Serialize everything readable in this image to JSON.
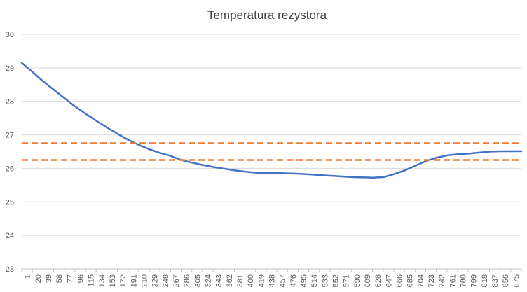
{
  "chart_data": {
    "type": "line",
    "title": "Temperatura rezystora",
    "xlabel": "",
    "ylabel": "",
    "ylim": [
      23,
      30
    ],
    "y_ticks": [
      "23",
      "24",
      "25",
      "26",
      "27",
      "28",
      "29",
      "30"
    ],
    "x_tick_labels": [
      "1",
      "20",
      "39",
      "58",
      "77",
      "96",
      "115",
      "134",
      "153",
      "172",
      "191",
      "210",
      "229",
      "248",
      "267",
      "286",
      "305",
      "324",
      "343",
      "362",
      "381",
      "400",
      "419",
      "438",
      "457",
      "476",
      "495",
      "514",
      "533",
      "552",
      "571",
      "590",
      "609",
      "628",
      "647",
      "666",
      "685",
      "704",
      "723",
      "742",
      "761",
      "780",
      "799",
      "818",
      "837",
      "856",
      "875"
    ],
    "x_range": [
      1,
      893
    ],
    "grid": "horizontal",
    "legend": "none",
    "series": [
      {
        "kind": "line",
        "color": "#4472C4",
        "x": [
          1,
          20,
          39,
          58,
          77,
          96,
          115,
          134,
          153,
          172,
          191,
          210,
          229,
          248,
          267,
          286,
          305,
          324,
          343,
          362,
          381,
          400,
          419,
          438,
          457,
          476,
          495,
          514,
          533,
          552,
          571,
          590,
          609,
          628,
          647,
          666,
          685,
          704,
          723,
          742,
          761,
          780,
          799,
          818,
          837,
          856,
          875,
          893
        ],
        "values": [
          29.15,
          28.88,
          28.6,
          28.35,
          28.1,
          27.85,
          27.63,
          27.42,
          27.22,
          27.03,
          26.85,
          26.7,
          26.57,
          26.46,
          26.37,
          26.25,
          26.17,
          26.1,
          26.04,
          25.99,
          25.94,
          25.9,
          25.87,
          25.86,
          25.86,
          25.85,
          25.84,
          25.82,
          25.8,
          25.78,
          25.76,
          25.74,
          25.73,
          25.72,
          25.74,
          25.83,
          25.94,
          26.08,
          26.22,
          26.32,
          26.39,
          26.42,
          26.44,
          26.47,
          26.5,
          26.51,
          26.51,
          26.51
        ]
      },
      {
        "kind": "dashed-line",
        "color": "#ED7D31",
        "values": [
          26.75,
          26.75
        ]
      },
      {
        "kind": "dashed-line",
        "color": "#ED7D31",
        "values": [
          26.25,
          26.25
        ]
      }
    ]
  }
}
